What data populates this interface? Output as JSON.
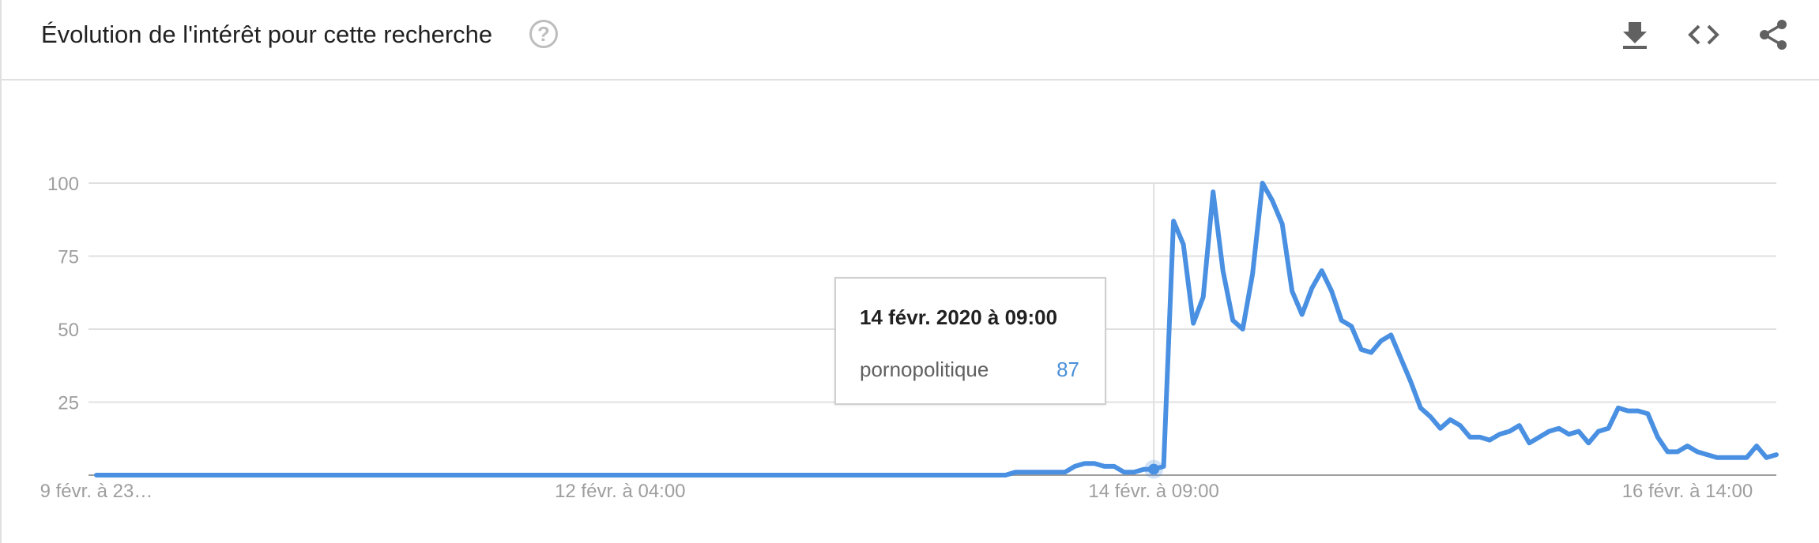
{
  "header": {
    "title": "Évolution de l'intérêt pour cette recherche",
    "help_glyph": "?"
  },
  "toolbar": {
    "icons": [
      "download-icon",
      "embed-code-icon",
      "share-icon"
    ]
  },
  "colors": {
    "series": "#4a90e2",
    "grid": "#e0e0e0",
    "tick_text": "#9e9e9e",
    "tooltip_value": "#4a90d9"
  },
  "tooltip": {
    "date": "14 févr. 2020 à 09:00",
    "series": "pornopolitique",
    "value": "87"
  },
  "chart_data": {
    "type": "line",
    "title": "",
    "xlabel": "",
    "ylabel": "",
    "ylim": [
      0,
      100
    ],
    "yticks": [
      25,
      50,
      75,
      100
    ],
    "grid": true,
    "xtick_labels": [
      {
        "index": 0,
        "label": "9 févr. à 23…"
      },
      {
        "index": 53,
        "label": "12 févr. à 04:00"
      },
      {
        "index": 107,
        "label": "14 févr. à 09:00"
      },
      {
        "index": 161,
        "label": "16 févr. à 14:00"
      }
    ],
    "highlight_index": 107,
    "series": [
      {
        "name": "pornopolitique",
        "values": [
          0,
          0,
          0,
          0,
          0,
          0,
          0,
          0,
          0,
          0,
          0,
          0,
          0,
          0,
          0,
          0,
          0,
          0,
          0,
          0,
          0,
          0,
          0,
          0,
          0,
          0,
          0,
          0,
          0,
          0,
          0,
          0,
          0,
          0,
          0,
          0,
          0,
          0,
          0,
          0,
          0,
          0,
          0,
          0,
          0,
          0,
          0,
          0,
          0,
          0,
          0,
          0,
          0,
          0,
          0,
          0,
          0,
          0,
          0,
          0,
          0,
          0,
          0,
          0,
          0,
          0,
          0,
          0,
          0,
          0,
          0,
          0,
          0,
          0,
          0,
          0,
          0,
          0,
          0,
          0,
          0,
          0,
          0,
          0,
          0,
          0,
          0,
          0,
          0,
          0,
          0,
          0,
          0,
          1,
          1,
          1,
          1,
          1,
          1,
          3,
          4,
          4,
          3,
          3,
          1,
          1,
          2,
          2,
          3,
          87,
          79,
          52,
          61,
          97,
          70,
          53,
          50,
          69,
          100,
          94,
          86,
          63,
          55,
          64,
          70,
          63,
          53,
          51,
          43,
          42,
          46,
          48,
          40,
          32,
          23,
          20,
          16,
          19,
          17,
          13,
          13,
          12,
          14,
          15,
          17,
          11,
          13,
          15,
          16,
          14,
          15,
          11,
          15,
          16,
          23,
          22,
          22,
          21,
          13,
          8,
          8,
          10,
          8,
          7,
          6,
          6,
          6,
          6,
          10,
          6,
          7
        ]
      }
    ]
  }
}
